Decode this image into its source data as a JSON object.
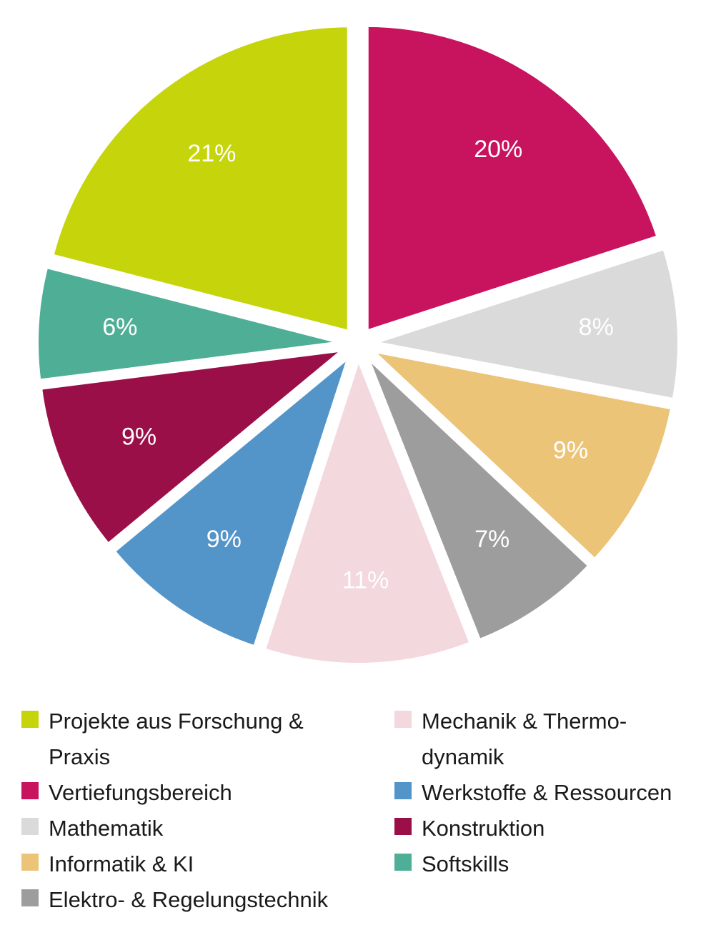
{
  "chart_data": {
    "type": "pie",
    "title": "",
    "slices": [
      {
        "label": "Vertiefungsbereich",
        "value": 20,
        "display": "20%",
        "color": "#c8135e"
      },
      {
        "label": "Mathematik",
        "value": 8,
        "display": "8%",
        "color": "#dadada"
      },
      {
        "label": "Informatik & KI",
        "value": 9,
        "display": "9%",
        "color": "#ebc477"
      },
      {
        "label": "Elektro- & Regelungstechnik",
        "value": 7,
        "display": "7%",
        "color": "#9d9d9d"
      },
      {
        "label": "Mechanik & Thermo-\ndynamik",
        "value": 11,
        "display": "11%",
        "color": "#f3d8de"
      },
      {
        "label": "Werkstoffe & Ressourcen",
        "value": 9,
        "display": "9%",
        "color": "#5495c9"
      },
      {
        "label": "Konstruktion",
        "value": 9,
        "display": "9%",
        "color": "#9a0f47"
      },
      {
        "label": "Softskills",
        "value": 6,
        "display": "6%",
        "color": "#4fae96"
      },
      {
        "label": "Projekte aus Forschung &\nPraxis",
        "value": 21,
        "display": "21%",
        "color": "#c5d40b"
      }
    ],
    "legend": {
      "left": [
        {
          "label": "Projekte aus Forschung &\nPraxis",
          "color": "#c5d40b"
        },
        {
          "label": "Vertiefungsbereich",
          "color": "#c8135e"
        },
        {
          "label": "Mathematik",
          "color": "#dadada"
        },
        {
          "label": "Informatik & KI",
          "color": "#ebc477"
        },
        {
          "label": "Elektro- & Regelungstechnik",
          "color": "#9d9d9d"
        }
      ],
      "right": [
        {
          "label": "Mechanik & Thermo-\ndynamik",
          "color": "#f3d8de"
        },
        {
          "label": "Werkstoffe & Ressourcen",
          "color": "#5495c9"
        },
        {
          "label": "Konstruktion",
          "color": "#9a0f47"
        },
        {
          "label": "Softskills",
          "color": "#4fae96"
        }
      ],
      "placement": "bottom"
    }
  }
}
